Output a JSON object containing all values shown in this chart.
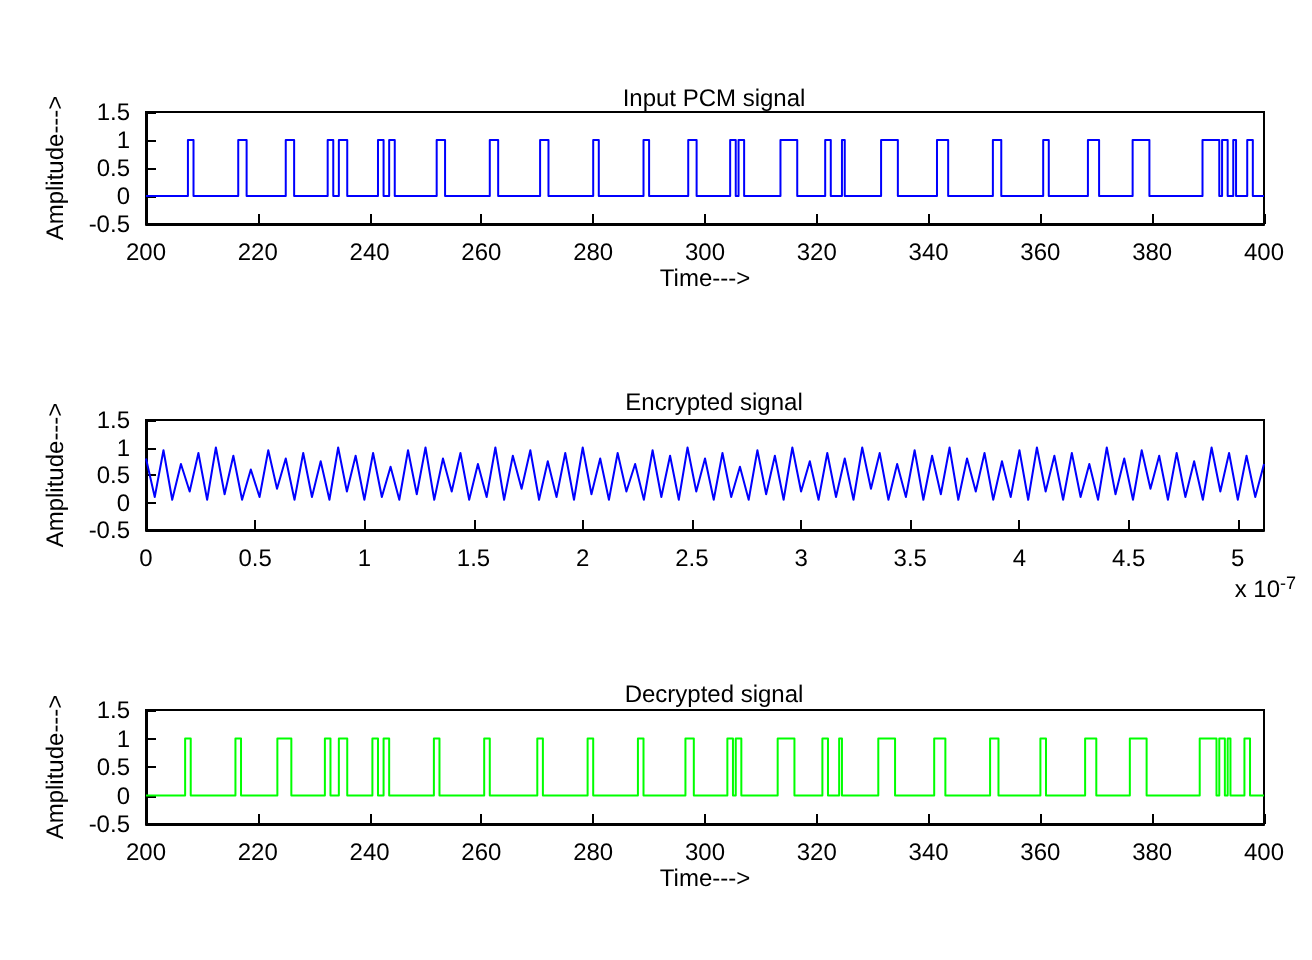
{
  "chart_data": [
    {
      "type": "step",
      "title": "Input PCM signal",
      "xlabel": "Time--->",
      "ylabel": "Amplitude--->",
      "xlim": [
        200,
        400
      ],
      "xticks": [
        200,
        220,
        240,
        260,
        280,
        300,
        320,
        340,
        360,
        380,
        400
      ],
      "ylim": [
        -0.5,
        1.5
      ],
      "yticks": [
        -0.5,
        0,
        0.5,
        1,
        1.5
      ],
      "series": [
        {
          "color": "#0000ff",
          "x": [
            200,
            207.5,
            208.5,
            216.5,
            218,
            225,
            226.5,
            232.5,
            233.5,
            234.5,
            236,
            241.5,
            242.5,
            243.5,
            244.5,
            252,
            253.5,
            261.5,
            263,
            270.5,
            272,
            280,
            281,
            289,
            290,
            297,
            298.5,
            304.5,
            305.5,
            306,
            307,
            313.5,
            316.5,
            321.5,
            322.5,
            324.5,
            325,
            331.5,
            334.5,
            341.5,
            343.5,
            351.5,
            353,
            360.5,
            361.5,
            368.5,
            370.5,
            376.5,
            379.5,
            389,
            392,
            392.5,
            393.5,
            394.5,
            395,
            397,
            398,
            400
          ],
          "values": [
            0,
            1,
            0,
            1,
            0,
            1,
            0,
            1,
            0,
            1,
            0,
            1,
            0,
            1,
            0,
            1,
            0,
            1,
            0,
            1,
            0,
            1,
            0,
            1,
            0,
            1,
            0,
            1,
            0,
            1,
            0,
            1,
            0,
            1,
            0,
            1,
            0,
            1,
            0,
            1,
            0,
            1,
            0,
            1,
            0,
            1,
            0,
            1,
            0,
            1,
            0,
            1,
            0,
            1,
            0,
            1,
            0,
            0
          ]
        }
      ]
    },
    {
      "type": "line",
      "title": "Encrypted signal",
      "ylabel": "Amplitude--->",
      "annotations": [
        "x 10$^{-7}$"
      ],
      "xlim": [
        0,
        5.12
      ],
      "xticks": [
        0,
        0.5,
        1,
        1.5,
        2,
        2.5,
        3,
        3.5,
        4,
        4.5,
        5
      ],
      "ylim": [
        -0.5,
        1.5
      ],
      "yticks": [
        -0.5,
        0,
        0.5,
        1,
        1.5
      ],
      "series": [
        {
          "color": "#0000ff",
          "x": [
            0,
            0.04,
            0.08,
            0.12,
            0.16,
            0.2,
            0.24,
            0.28,
            0.32,
            0.36,
            0.4,
            0.44,
            0.48,
            0.52,
            0.56,
            0.6,
            0.64,
            0.68,
            0.72,
            0.76,
            0.8,
            0.84,
            0.88,
            0.92,
            0.96,
            1,
            1.04,
            1.08,
            1.12,
            1.16,
            1.2,
            1.24,
            1.28,
            1.32,
            1.36,
            1.4,
            1.44,
            1.48,
            1.52,
            1.56,
            1.6,
            1.64,
            1.68,
            1.72,
            1.76,
            1.8,
            1.84,
            1.88,
            1.92,
            1.96,
            2,
            2.04,
            2.08,
            2.12,
            2.16,
            2.2,
            2.24,
            2.28,
            2.32,
            2.36,
            2.4,
            2.44,
            2.48,
            2.52,
            2.56,
            2.6,
            2.64,
            2.68,
            2.72,
            2.76,
            2.8,
            2.84,
            2.88,
            2.92,
            2.96,
            3,
            3.04,
            3.08,
            3.12,
            3.16,
            3.2,
            3.24,
            3.28,
            3.32,
            3.36,
            3.4,
            3.44,
            3.48,
            3.52,
            3.56,
            3.6,
            3.64,
            3.68,
            3.72,
            3.76,
            3.8,
            3.84,
            3.88,
            3.92,
            3.96,
            4,
            4.04,
            4.08,
            4.12,
            4.16,
            4.2,
            4.24,
            4.28,
            4.32,
            4.36,
            4.4,
            4.44,
            4.48,
            4.52,
            4.56,
            4.6,
            4.64,
            4.68,
            4.72,
            4.76,
            4.8,
            4.84,
            4.88,
            4.92,
            4.96,
            5,
            5.04,
            5.08,
            5.12
          ],
          "values": [
            0.8,
            0.1,
            0.95,
            0.05,
            0.7,
            0.2,
            0.9,
            0.05,
            1,
            0.15,
            0.85,
            0.05,
            0.6,
            0.1,
            0.95,
            0.25,
            0.8,
            0.05,
            0.9,
            0.1,
            0.75,
            0.05,
            1,
            0.2,
            0.85,
            0.05,
            0.9,
            0.1,
            0.65,
            0.05,
            0.95,
            0.15,
            1,
            0.05,
            0.8,
            0.2,
            0.9,
            0.05,
            0.7,
            0.1,
            1,
            0.05,
            0.85,
            0.25,
            0.95,
            0.05,
            0.75,
            0.1,
            0.9,
            0.05,
            1,
            0.15,
            0.8,
            0.05,
            0.9,
            0.2,
            0.7,
            0.05,
            0.95,
            0.1,
            0.85,
            0.05,
            1,
            0.2,
            0.8,
            0.05,
            0.9,
            0.1,
            0.65,
            0.05,
            0.95,
            0.15,
            0.85,
            0.05,
            1,
            0.2,
            0.75,
            0.05,
            0.9,
            0.1,
            0.8,
            0.05,
            1,
            0.25,
            0.9,
            0.05,
            0.7,
            0.1,
            0.95,
            0.05,
            0.85,
            0.15,
            1,
            0.05,
            0.8,
            0.2,
            0.9,
            0.05,
            0.75,
            0.1,
            0.95,
            0.05,
            1,
            0.2,
            0.85,
            0.05,
            0.9,
            0.1,
            0.7,
            0.05,
            1,
            0.15,
            0.8,
            0.05,
            0.95,
            0.25,
            0.85,
            0.05,
            0.9,
            0.1,
            0.75,
            0.05,
            1,
            0.2,
            0.9,
            0.05,
            0.85,
            0.1,
            0.7
          ]
        }
      ]
    },
    {
      "type": "step",
      "title": "Decrypted signal",
      "xlabel": "Time--->",
      "ylabel": "Amplitude--->",
      "xlim": [
        200,
        400
      ],
      "xticks": [
        200,
        220,
        240,
        260,
        280,
        300,
        320,
        340,
        360,
        380,
        400
      ],
      "ylim": [
        -0.5,
        1.5
      ],
      "yticks": [
        -0.5,
        0,
        0.5,
        1,
        1.5
      ],
      "series": [
        {
          "color": "#00ff00",
          "x": [
            200,
            207,
            208,
            216,
            217,
            223.5,
            226,
            232,
            233,
            234.5,
            236,
            240.5,
            241.5,
            242.5,
            243.5,
            251.5,
            252.5,
            260.5,
            261.5,
            270,
            271,
            279,
            280,
            288,
            289,
            296.5,
            298,
            304,
            305,
            305.5,
            306.5,
            313,
            316,
            321,
            322,
            324,
            324.5,
            331,
            334,
            341,
            343,
            351,
            352.5,
            360,
            361,
            368,
            370,
            376,
            379,
            388.5,
            391.5,
            392,
            393,
            393.5,
            394,
            396.5,
            397.5,
            400
          ],
          "values": [
            0,
            1,
            0,
            1,
            0,
            1,
            0,
            1,
            0,
            1,
            0,
            1,
            0,
            1,
            0,
            1,
            0,
            1,
            0,
            1,
            0,
            1,
            0,
            1,
            0,
            1,
            0,
            1,
            0,
            1,
            0,
            1,
            0,
            1,
            0,
            1,
            0,
            1,
            0,
            1,
            0,
            1,
            0,
            1,
            0,
            1,
            0,
            1,
            0,
            1,
            0,
            1,
            0,
            1,
            0,
            1,
            0,
            0
          ]
        }
      ]
    }
  ]
}
